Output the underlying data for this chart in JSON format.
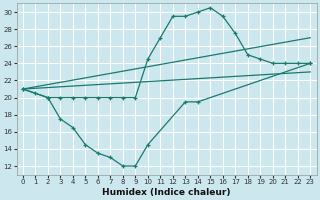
{
  "xlabel": "Humidex (Indice chaleur)",
  "bg_color": "#cce8ee",
  "grid_color": "#ffffff",
  "line_color": "#1a7a6e",
  "xlim": [
    -0.5,
    23.5
  ],
  "ylim": [
    11,
    31
  ],
  "yticks": [
    12,
    14,
    16,
    18,
    20,
    22,
    24,
    26,
    28,
    30
  ],
  "xticks": [
    0,
    1,
    2,
    3,
    4,
    5,
    6,
    7,
    8,
    9,
    10,
    11,
    12,
    13,
    14,
    15,
    16,
    17,
    18,
    19,
    20,
    21,
    22,
    23
  ],
  "upper_curve": {
    "x": [
      0,
      1,
      2,
      3,
      4,
      5,
      6,
      7,
      8,
      9,
      10,
      11,
      12,
      13,
      14,
      15,
      16,
      17,
      18,
      19,
      20,
      21,
      22,
      23
    ],
    "y": [
      21.0,
      20.5,
      20.0,
      20.0,
      20.0,
      20.0,
      20.0,
      20.0,
      20.0,
      20.0,
      24.5,
      27.0,
      29.5,
      29.5,
      30.0,
      30.5,
      29.5,
      27.5,
      25.0,
      24.5,
      24.0,
      24.0,
      24.0,
      24.0
    ]
  },
  "lower_curve": {
    "x": [
      0,
      2,
      3,
      4,
      5,
      6,
      7,
      8,
      9,
      10,
      13,
      14,
      23
    ],
    "y": [
      21.0,
      20.0,
      17.5,
      16.5,
      14.5,
      13.5,
      13.0,
      12.0,
      12.0,
      14.5,
      19.5,
      19.5,
      24.0
    ]
  },
  "straight_line1": {
    "x": [
      0,
      23
    ],
    "y": [
      21.0,
      27.0
    ]
  },
  "straight_line2": {
    "x": [
      0,
      23
    ],
    "y": [
      21.0,
      23.0
    ]
  }
}
